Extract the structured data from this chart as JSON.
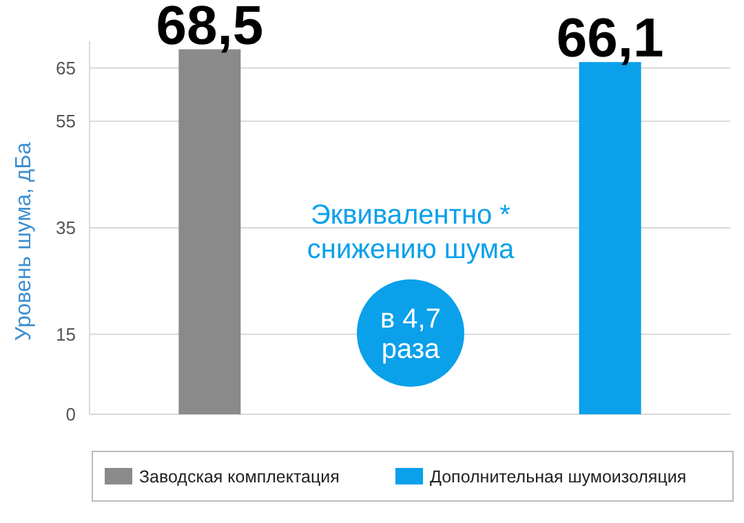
{
  "chart_data": {
    "type": "bar",
    "categories": [
      null,
      null
    ],
    "series": [
      {
        "name": "Заводская комплектация",
        "color": "#8a8a8a",
        "values": [
          68.5,
          null
        ],
        "value_labels": [
          "68,5",
          null
        ]
      },
      {
        "name": "Дополнительная шумоизоляция",
        "color": "#0aa0ea",
        "values": [
          null,
          66.1
        ],
        "value_labels": [
          null,
          "66,1"
        ]
      }
    ],
    "ylabel": "Уровень шума, дБа",
    "ylim": [
      0,
      70
    ],
    "yticks": [
      0,
      15,
      35,
      55,
      65
    ],
    "grid": "y",
    "legend": "bottom",
    "tick_labels": "y",
    "annotations": [
      "Эквивалентно *\nснижению шума",
      "в 4,7\nраза"
    ]
  }
}
